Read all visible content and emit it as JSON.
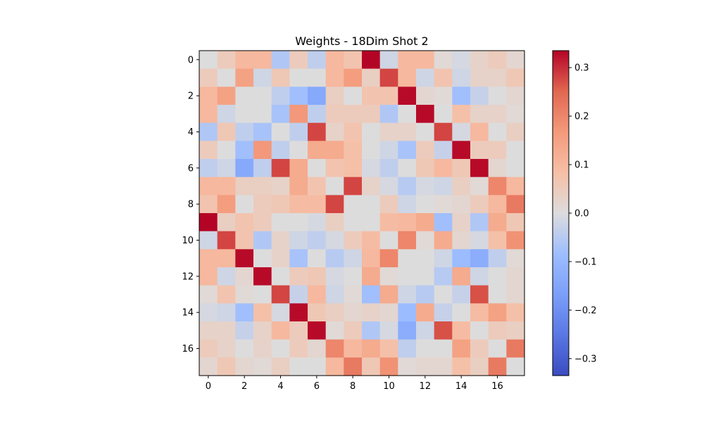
{
  "chart_data": {
    "type": "heatmap",
    "title": "Weights - 18Dim Shot 2",
    "colormap": "coolwarm",
    "vmin": -0.335,
    "vmax": 0.335,
    "x_ticks": [
      0,
      2,
      4,
      6,
      8,
      10,
      12,
      14,
      16
    ],
    "y_ticks": [
      0,
      2,
      4,
      6,
      8,
      10,
      12,
      14,
      16
    ],
    "colorbar_ticks": [
      {
        "value": 0.3,
        "label": "0.3"
      },
      {
        "value": 0.2,
        "label": "0.2"
      },
      {
        "value": 0.1,
        "label": "0.1"
      },
      {
        "value": 0.0,
        "label": "0.0"
      },
      {
        "value": -0.1,
        "label": "−0.1"
      },
      {
        "value": -0.2,
        "label": "−0.2"
      },
      {
        "value": -0.3,
        "label": "−0.3"
      }
    ],
    "matrix": [
      [
        0.0,
        0.05,
        0.1,
        0.1,
        -0.06,
        0.05,
        -0.04,
        0.1,
        0.07,
        0.335,
        -0.02,
        0.1,
        0.1,
        0.01,
        -0.01,
        0.03,
        0.05,
        0.02
      ],
      [
        0.05,
        0.0,
        0.15,
        -0.02,
        0.06,
        0.0,
        0.0,
        0.1,
        0.16,
        0.04,
        0.28,
        0.1,
        -0.02,
        0.07,
        -0.02,
        0.03,
        0.03,
        0.06
      ],
      [
        0.1,
        0.15,
        0.0,
        0.0,
        -0.04,
        -0.08,
        -0.14,
        0.04,
        0.0,
        0.07,
        0.07,
        0.33,
        0.02,
        0.01,
        -0.08,
        -0.03,
        0.0,
        0.02
      ],
      [
        0.1,
        -0.02,
        0.0,
        0.0,
        -0.07,
        0.17,
        -0.04,
        0.05,
        0.05,
        0.05,
        -0.06,
        0.0,
        0.33,
        0.0,
        0.08,
        0.03,
        0.03,
        0.01
      ],
      [
        -0.06,
        0.06,
        -0.04,
        -0.07,
        0.0,
        -0.04,
        0.28,
        0.03,
        0.07,
        0.0,
        0.03,
        0.03,
        0.0,
        0.28,
        -0.01,
        0.1,
        0.0,
        0.04
      ],
      [
        0.05,
        0.0,
        -0.08,
        0.17,
        -0.04,
        0.0,
        0.13,
        0.13,
        0.08,
        0.0,
        -0.02,
        -0.07,
        0.05,
        -0.03,
        0.33,
        0.05,
        0.05,
        0.0
      ],
      [
        -0.04,
        -0.02,
        -0.14,
        -0.04,
        0.28,
        0.13,
        0.0,
        0.07,
        0.08,
        -0.01,
        -0.04,
        0.0,
        0.06,
        0.1,
        0.06,
        0.33,
        0.02,
        0.0
      ],
      [
        0.1,
        0.1,
        0.04,
        0.04,
        0.03,
        0.13,
        0.07,
        0.0,
        0.28,
        0.03,
        -0.01,
        -0.05,
        -0.01,
        -0.02,
        0.04,
        0.01,
        0.2,
        0.1
      ],
      [
        0.07,
        0.16,
        0.0,
        0.05,
        0.06,
        0.09,
        0.09,
        0.28,
        0.0,
        0.0,
        0.05,
        -0.02,
        0.0,
        0.01,
        0.02,
        0.05,
        0.1,
        0.22
      ],
      [
        0.335,
        0.04,
        0.07,
        0.05,
        0.0,
        0.0,
        -0.01,
        0.04,
        0.0,
        0.0,
        0.09,
        0.1,
        0.13,
        -0.08,
        0.03,
        -0.06,
        0.13,
        0.06
      ],
      [
        -0.02,
        0.28,
        0.07,
        -0.06,
        0.03,
        -0.02,
        -0.04,
        -0.01,
        0.05,
        0.09,
        0.0,
        0.2,
        0.01,
        0.13,
        0.02,
        -0.01,
        0.08,
        0.18
      ],
      [
        0.1,
        0.1,
        0.33,
        0.0,
        0.03,
        -0.07,
        0.0,
        -0.05,
        -0.02,
        0.1,
        0.2,
        0.0,
        0.0,
        -0.02,
        -0.09,
        -0.13,
        -0.04,
        0.01
      ],
      [
        0.1,
        -0.02,
        0.02,
        0.33,
        0.0,
        0.05,
        0.06,
        -0.01,
        0.0,
        0.13,
        0.01,
        0.0,
        0.0,
        -0.05,
        0.13,
        -0.02,
        0.0,
        0.02
      ],
      [
        0.01,
        0.07,
        0.01,
        0.0,
        0.28,
        -0.03,
        0.1,
        -0.02,
        0.01,
        -0.08,
        0.13,
        -0.02,
        -0.05,
        0.0,
        -0.03,
        0.27,
        0.0,
        0.02
      ],
      [
        -0.01,
        -0.02,
        -0.08,
        0.08,
        -0.01,
        0.33,
        0.06,
        0.04,
        0.02,
        0.03,
        0.02,
        -0.09,
        0.13,
        -0.03,
        0.0,
        0.09,
        0.15,
        0.08
      ],
      [
        0.03,
        0.03,
        -0.03,
        0.03,
        0.1,
        0.05,
        0.33,
        0.01,
        0.05,
        -0.06,
        -0.01,
        -0.13,
        -0.02,
        0.27,
        0.09,
        0.0,
        0.05,
        0.04
      ],
      [
        0.05,
        0.03,
        0.0,
        0.03,
        0.0,
        0.05,
        0.02,
        0.2,
        0.1,
        0.13,
        0.08,
        -0.04,
        0.0,
        0.0,
        0.15,
        0.05,
        0.0,
        0.22
      ],
      [
        0.02,
        0.06,
        0.02,
        0.01,
        0.04,
        0.0,
        0.0,
        0.1,
        0.22,
        0.06,
        0.18,
        0.01,
        0.02,
        0.02,
        0.08,
        0.04,
        0.22,
        0.0
      ]
    ]
  }
}
